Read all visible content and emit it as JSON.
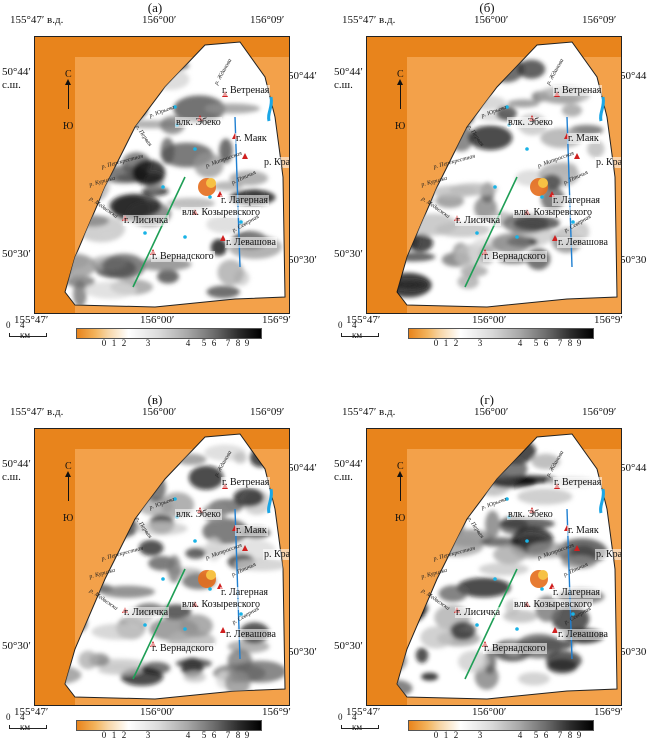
{
  "panels": [
    {
      "letter": "(а)",
      "id": "a"
    },
    {
      "letter": "(б)",
      "id": "b"
    },
    {
      "letter": "(в)",
      "id": "v"
    },
    {
      "letter": "(г)",
      "id": "g"
    }
  ],
  "coords": {
    "lon_left": "155°47′ в.д.",
    "lon_mid": "156°00′",
    "lon_right": "156°09′",
    "lat_top_left": "50°44′",
    "lat_top_left_hem": "с.ш.",
    "lat_top_right": "50°44′",
    "lat_bot_left": "50°30′",
    "lat_bot_right": "50°30′",
    "lon_bottom_left": "155°47′",
    "lon_bottom_mid": "156°00′",
    "lon_bottom_right": "156°9′"
  },
  "north": {
    "n": "С",
    "s": "Ю"
  },
  "scale": {
    "zero": "0",
    "label": "4 км"
  },
  "legend_ticks": [
    "0",
    "1",
    "2",
    "3",
    "4",
    "5",
    "6",
    "7",
    "8",
    "9"
  ],
  "labels": {
    "vetrenaya": "г. Ветреная",
    "esko": "влк. Эбеко",
    "mayak": "г. Маяк",
    "krasny": "р. Красный",
    "lagernaya": "г. Лагерная",
    "kozyrevsky": "влк. Козыревского",
    "lisichka": "г. Лисичка",
    "levashova": "г. Левашова",
    "vernadsky": "г. Вернадского"
  },
  "rivers": {
    "zhdanova": "р. Жданова",
    "yuryeva": "р. Юрьева",
    "matrosskaya": "р. Матросская",
    "ptichya": "р. Птичья",
    "perekrestnaya": "р. Перекрестная",
    "kurilka": "р. Курилка",
    "medvezhka": "р. Медвежка",
    "pervaya": "р. Первая",
    "severnaya": "р. Северная"
  },
  "colors": {
    "land_high": "#ffffff",
    "sea": "#e8841c",
    "profile_green": "#1e9e55",
    "profile_blue": "#1f7fd1",
    "volcano_red": "#d02020"
  }
}
